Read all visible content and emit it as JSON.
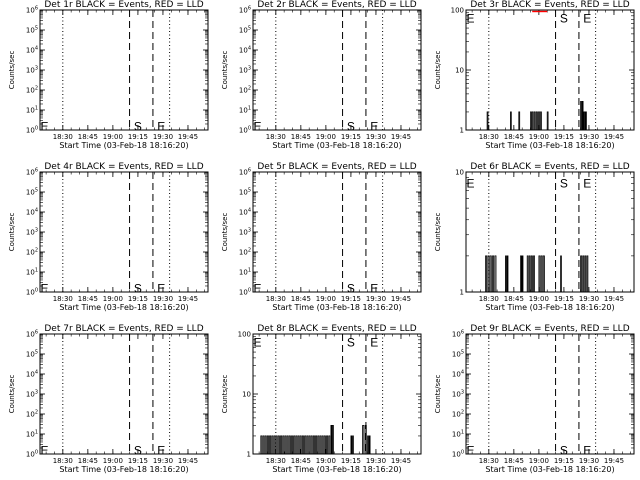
{
  "figure": {
    "background": "#ffffff",
    "event_color": "#000000",
    "lld_color": "#ff0000"
  },
  "chart_data": [
    {
      "type": "line",
      "title": "Det 1r BLACK = Events, RED = LLD",
      "xlabel": "Start Time (03-Feb-18 18:16:20)",
      "ylabel": "Counts/sec",
      "x_ticks": [
        "18:30",
        "18:45",
        "19:00",
        "19:15",
        "19:30",
        "19:45"
      ],
      "log_y": true,
      "ylim": [
        1,
        1000000.0
      ],
      "y_ticks": [
        "10^0",
        "10^1",
        "10^2",
        "10^3",
        "10^4",
        "10^5",
        "10^6"
      ],
      "dotted_lines": [
        "18:30",
        "19:34"
      ],
      "dashed_lines": [
        "19:10",
        "19:24"
      ],
      "markers": [
        {
          "text": "E",
          "x": "18:16",
          "y": 1.5
        },
        {
          "text": "S",
          "x": "19:12",
          "y": 1.5
        },
        {
          "text": "E",
          "x": "19:26",
          "y": 1.5
        }
      ],
      "series": []
    },
    {
      "type": "line",
      "title": "Det 2r BLACK = Events, RED = LLD",
      "xlabel": "Start Time (03-Feb-18 18:16:20)",
      "ylabel": "Counts/sec",
      "x_ticks": [
        "18:30",
        "18:45",
        "19:00",
        "19:15",
        "19:30",
        "19:45"
      ],
      "log_y": true,
      "ylim": [
        1,
        1000000.0
      ],
      "y_ticks": [
        "10^0",
        "10^1",
        "10^2",
        "10^3",
        "10^4",
        "10^5",
        "10^6"
      ],
      "dotted_lines": [
        "18:30",
        "19:34"
      ],
      "dashed_lines": [
        "19:10",
        "19:24"
      ],
      "markers": [
        {
          "text": "E",
          "x": "18:16",
          "y": 1.5
        },
        {
          "text": "S",
          "x": "19:12",
          "y": 1.5
        },
        {
          "text": "E",
          "x": "19:26",
          "y": 1.5
        }
      ],
      "series": []
    },
    {
      "type": "line",
      "title": "Det 3r BLACK = Events, RED = LLD",
      "xlabel": "Start Time (03-Feb-18 18:16:20)",
      "ylabel": "Counts/sec",
      "x_ticks": [
        "18:30",
        "18:45",
        "19:00",
        "19:15",
        "19:30",
        "19:45"
      ],
      "log_y": true,
      "ylim": [
        1,
        100
      ],
      "y_ticks": [
        "1",
        "10",
        "100"
      ],
      "dotted_lines": [
        "18:30",
        "19:34"
      ],
      "dashed_lines": [
        "19:10",
        "19:24"
      ],
      "markers": [
        {
          "text": "E",
          "x": "18:16",
          "y": 72
        },
        {
          "text": "S",
          "x": "19:12",
          "y": 72
        },
        {
          "text": "E",
          "x": "19:26",
          "y": 72
        }
      ],
      "series": [
        {
          "role": "events",
          "bursts": [
            [
              "18:29",
              "18:30",
              2
            ],
            [
              "18:43",
              "18:44",
              2
            ],
            [
              "18:48",
              "18:49",
              2
            ],
            [
              "18:55",
              "18:56",
              2
            ],
            [
              "18:56",
              "19:01",
              2
            ],
            [
              "19:01",
              "19:02",
              2
            ],
            [
              "19:05",
              "19:06",
              2
            ],
            [
              "19:25",
              "19:27",
              3
            ],
            [
              "19:27",
              "19:29",
              2
            ]
          ]
        },
        {
          "role": "lld",
          "bursts": [
            [
              "18:56",
              "19:05",
              100
            ]
          ]
        }
      ]
    },
    {
      "type": "line",
      "title": "Det 4r BLACK = Events, RED = LLD",
      "xlabel": "Start Time (03-Feb-18 18:16:20)",
      "ylabel": "Counts/sec",
      "x_ticks": [
        "18:30",
        "18:45",
        "19:00",
        "19:15",
        "19:30",
        "19:45"
      ],
      "log_y": true,
      "ylim": [
        1,
        1000000.0
      ],
      "y_ticks": [
        "10^0",
        "10^1",
        "10^2",
        "10^3",
        "10^4",
        "10^5",
        "10^6"
      ],
      "dotted_lines": [
        "18:30",
        "19:34"
      ],
      "dashed_lines": [
        "19:10",
        "19:24"
      ],
      "markers": [
        {
          "text": "E",
          "x": "18:16",
          "y": 1.5
        },
        {
          "text": "S",
          "x": "19:12",
          "y": 1.5
        },
        {
          "text": "E",
          "x": "19:26",
          "y": 1.5
        }
      ],
      "series": []
    },
    {
      "type": "line",
      "title": "Det 5r BLACK = Events, RED = LLD",
      "xlabel": "Start Time (03-Feb-18 18:16:20)",
      "ylabel": "Counts/sec",
      "x_ticks": [
        "18:30",
        "18:45",
        "19:00",
        "19:15",
        "19:30",
        "19:45"
      ],
      "log_y": true,
      "ylim": [
        1,
        1000000.0
      ],
      "y_ticks": [
        "10^0",
        "10^1",
        "10^2",
        "10^3",
        "10^4",
        "10^5",
        "10^6"
      ],
      "dotted_lines": [
        "18:30",
        "19:34"
      ],
      "dashed_lines": [
        "19:10",
        "19:24"
      ],
      "markers": [
        {
          "text": "E",
          "x": "18:16",
          "y": 1.5
        },
        {
          "text": "S",
          "x": "19:12",
          "y": 1.5
        },
        {
          "text": "E",
          "x": "19:26",
          "y": 1.5
        }
      ],
      "series": []
    },
    {
      "type": "line",
      "title": "Det 6r BLACK = Events, RED = LLD",
      "xlabel": "Start Time (03-Feb-18 18:16:20)",
      "ylabel": "Counts/sec",
      "x_ticks": [
        "18:30",
        "18:45",
        "19:00",
        "19:15",
        "19:30",
        "19:45"
      ],
      "log_y": true,
      "ylim": [
        1,
        10
      ],
      "y_ticks": [
        "1",
        "10"
      ],
      "dotted_lines": [
        "18:30",
        "19:34"
      ],
      "dashed_lines": [
        "19:10",
        "19:24"
      ],
      "markers": [
        {
          "text": "E",
          "x": "18:16",
          "y": 8
        },
        {
          "text": "S",
          "x": "19:12",
          "y": 8
        },
        {
          "text": "E",
          "x": "19:26",
          "y": 8
        }
      ],
      "series": [
        {
          "role": "events",
          "bursts": [
            [
              "18:28",
              "18:35",
              2
            ],
            [
              "18:40",
              "18:42",
              2
            ],
            [
              "18:49",
              "18:51",
              2
            ],
            [
              "18:53",
              "18:58",
              2
            ],
            [
              "19:00",
              "19:04",
              2
            ],
            [
              "19:13",
              "19:14",
              2
            ],
            [
              "19:25",
              "19:30",
              2
            ]
          ]
        }
      ]
    },
    {
      "type": "line",
      "title": "Det 7r BLACK = Events, RED = LLD",
      "xlabel": "Start Time (03-Feb-18 18:16:20)",
      "ylabel": "Counts/sec",
      "x_ticks": [
        "18:30",
        "18:45",
        "19:00",
        "19:15",
        "19:30",
        "19:45"
      ],
      "log_y": true,
      "ylim": [
        1,
        1000000.0
      ],
      "y_ticks": [
        "10^0",
        "10^1",
        "10^2",
        "10^3",
        "10^4",
        "10^5",
        "10^6"
      ],
      "dotted_lines": [
        "18:30",
        "19:34"
      ],
      "dashed_lines": [
        "19:10",
        "19:24"
      ],
      "markers": [
        {
          "text": "E",
          "x": "18:16",
          "y": 1.5
        },
        {
          "text": "S",
          "x": "19:12",
          "y": 1.5
        },
        {
          "text": "E",
          "x": "19:26",
          "y": 1.5
        }
      ],
      "series": []
    },
    {
      "type": "line",
      "title": "Det 8r BLACK = Events, RED = LLD",
      "xlabel": "Start Time (03-Feb-18 18:16:20)",
      "ylabel": "Counts/sec",
      "x_ticks": [
        "18:30",
        "18:45",
        "19:00",
        "19:15",
        "19:30",
        "19:45"
      ],
      "log_y": true,
      "ylim": [
        1,
        100
      ],
      "y_ticks": [
        "1",
        "10",
        "100"
      ],
      "dotted_lines": [
        "18:30",
        "19:34"
      ],
      "dashed_lines": [
        "19:10",
        "19:24"
      ],
      "markers": [
        {
          "text": "E",
          "x": "18:16",
          "y": 72
        },
        {
          "text": "S",
          "x": "19:12",
          "y": 72
        },
        {
          "text": "E",
          "x": "19:26",
          "y": 72
        }
      ],
      "series": [
        {
          "role": "events",
          "bursts": [
            [
              "18:21",
              "19:03",
              2
            ],
            [
              "19:03",
              "19:05",
              3
            ],
            [
              "19:15",
              "19:17",
              2
            ],
            [
              "19:22",
              "19:25",
              3
            ],
            [
              "19:25",
              "19:27",
              2
            ]
          ]
        }
      ]
    },
    {
      "type": "line",
      "title": "Det 9r BLACK = Events, RED = LLD",
      "xlabel": "Start Time (03-Feb-18 18:16:20)",
      "ylabel": "Counts/sec",
      "x_ticks": [
        "18:30",
        "18:45",
        "19:00",
        "19:15",
        "19:30",
        "19:45"
      ],
      "log_y": true,
      "ylim": [
        1,
        1000000.0
      ],
      "y_ticks": [
        "10^0",
        "10^1",
        "10^2",
        "10^3",
        "10^4",
        "10^5",
        "10^6"
      ],
      "dotted_lines": [
        "18:30",
        "19:34"
      ],
      "dashed_lines": [
        "19:10",
        "19:24"
      ],
      "markers": [
        {
          "text": "E",
          "x": "18:16",
          "y": 1.5
        },
        {
          "text": "S",
          "x": "19:12",
          "y": 1.5
        },
        {
          "text": "E",
          "x": "19:26",
          "y": 1.5
        }
      ],
      "series": []
    }
  ]
}
